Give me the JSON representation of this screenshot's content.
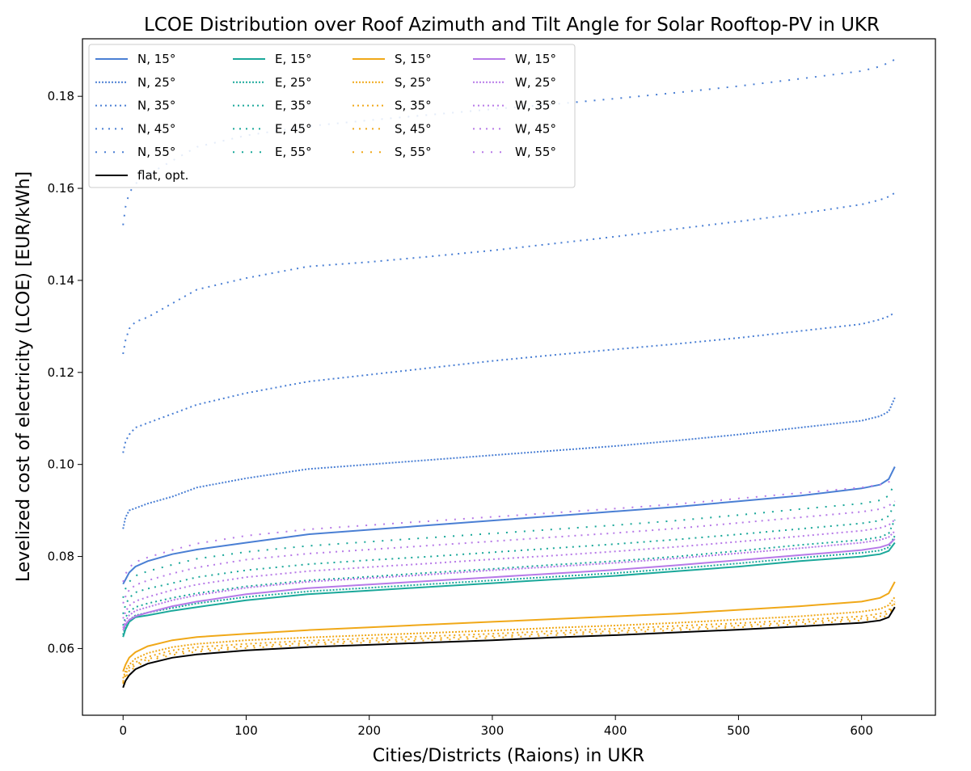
{
  "chart_data": {
    "type": "line",
    "title": "LCOE Distribution over Roof Azimuth and Tilt Angle for Solar Rooftop-PV in UKR",
    "xlabel": "Cities/Districts (Raions) in UKR",
    "ylabel": "Levelized cost of electricity (LCOE) [EUR/kWh]",
    "xlim": [
      -33,
      660
    ],
    "ylim": [
      0.0455,
      0.1925
    ],
    "xticks": [
      0,
      100,
      200,
      300,
      400,
      500,
      600
    ],
    "yticks": [
      0.06,
      0.08,
      0.1,
      0.12,
      0.14,
      0.16,
      0.18
    ],
    "ytick_labels": [
      "0.06",
      "0.08",
      "0.10",
      "0.12",
      "0.14",
      "0.16",
      "0.18"
    ],
    "grid": false,
    "legend_position": "top-left",
    "legend_columns": 4,
    "x_profile": [
      0,
      2,
      5,
      10,
      20,
      40,
      60,
      100,
      150,
      200,
      250,
      300,
      350,
      400,
      450,
      500,
      550,
      600,
      615,
      622,
      627
    ],
    "series": [
      {
        "name": "N, 15°",
        "color": "#4a7fd4",
        "dash": "solid",
        "values": [
          0.074,
          0.075,
          0.0765,
          0.0778,
          0.079,
          0.0805,
          0.0815,
          0.083,
          0.0848,
          0.0858,
          0.0868,
          0.0878,
          0.0888,
          0.0898,
          0.0908,
          0.092,
          0.0932,
          0.0948,
          0.0956,
          0.0968,
          0.0995
        ]
      },
      {
        "name": "N, 25°",
        "color": "#4a7fd4",
        "dash": "dot1",
        "values": [
          0.086,
          0.0885,
          0.09,
          0.0905,
          0.0915,
          0.093,
          0.095,
          0.097,
          0.099,
          0.1,
          0.101,
          0.102,
          0.103,
          0.104,
          0.1052,
          0.1065,
          0.108,
          0.1095,
          0.1105,
          0.1115,
          0.1145
        ]
      },
      {
        "name": "N, 35°",
        "color": "#4a7fd4",
        "dash": "dot2",
        "values": [
          0.1025,
          0.105,
          0.1065,
          0.108,
          0.109,
          0.111,
          0.113,
          0.1155,
          0.118,
          0.1195,
          0.121,
          0.1225,
          0.1238,
          0.125,
          0.1262,
          0.1275,
          0.129,
          0.1305,
          0.1315,
          0.1322,
          0.133
        ]
      },
      {
        "name": "N, 45°",
        "color": "#4a7fd4",
        "dash": "dot3",
        "values": [
          0.124,
          0.127,
          0.1295,
          0.131,
          0.132,
          0.135,
          0.138,
          0.1405,
          0.143,
          0.144,
          0.1452,
          0.1465,
          0.148,
          0.1495,
          0.1512,
          0.1528,
          0.1545,
          0.1565,
          0.1575,
          0.1582,
          0.159
        ]
      },
      {
        "name": "N, 55°",
        "color": "#4a7fd4",
        "dash": "dot4",
        "values": [
          0.152,
          0.156,
          0.159,
          0.161,
          0.163,
          0.166,
          0.169,
          0.1715,
          0.1735,
          0.1748,
          0.176,
          0.1772,
          0.1783,
          0.1795,
          0.1808,
          0.1822,
          0.1838,
          0.1855,
          0.1865,
          0.1873,
          0.188
        ]
      },
      {
        "name": "E, 15°",
        "color": "#1aa89a",
        "dash": "solid",
        "values": [
          0.0625,
          0.0642,
          0.0658,
          0.0668,
          0.0672,
          0.0682,
          0.069,
          0.0705,
          0.0718,
          0.0726,
          0.0734,
          0.0742,
          0.075,
          0.0758,
          0.0768,
          0.0778,
          0.079,
          0.08,
          0.0805,
          0.0812,
          0.083
        ]
      },
      {
        "name": "E, 25°",
        "color": "#1aa89a",
        "dash": "dot1",
        "values": [
          0.063,
          0.065,
          0.0662,
          0.0672,
          0.0678,
          0.0688,
          0.0698,
          0.0712,
          0.0724,
          0.0732,
          0.074,
          0.0748,
          0.0756,
          0.0764,
          0.0774,
          0.0785,
          0.0797,
          0.0808,
          0.0813,
          0.082,
          0.0845
        ]
      },
      {
        "name": "E, 35°",
        "color": "#1aa89a",
        "dash": "dot2",
        "values": [
          0.065,
          0.0668,
          0.068,
          0.069,
          0.0698,
          0.071,
          0.072,
          0.0735,
          0.0748,
          0.0756,
          0.0765,
          0.0773,
          0.0782,
          0.079,
          0.08,
          0.0812,
          0.0825,
          0.0836,
          0.0842,
          0.085,
          0.088
        ]
      },
      {
        "name": "E, 45°",
        "color": "#1aa89a",
        "dash": "dot3",
        "values": [
          0.0675,
          0.0695,
          0.071,
          0.0722,
          0.073,
          0.0742,
          0.0755,
          0.077,
          0.0783,
          0.0792,
          0.08,
          0.0809,
          0.0818,
          0.0827,
          0.0837,
          0.0848,
          0.086,
          0.0872,
          0.0878,
          0.0888,
          0.0915
        ]
      },
      {
        "name": "E, 55°",
        "color": "#1aa89a",
        "dash": "dot4",
        "values": [
          0.071,
          0.073,
          0.0745,
          0.0758,
          0.0768,
          0.0782,
          0.0795,
          0.081,
          0.0823,
          0.0832,
          0.0841,
          0.085,
          0.0859,
          0.0868,
          0.0878,
          0.089,
          0.0903,
          0.0915,
          0.0922,
          0.0932,
          0.096
        ]
      },
      {
        "name": "S, 15°",
        "color": "#f0a818",
        "dash": "solid",
        "values": [
          0.055,
          0.0565,
          0.058,
          0.0592,
          0.0605,
          0.0618,
          0.0625,
          0.0632,
          0.064,
          0.0646,
          0.0652,
          0.0658,
          0.0664,
          0.067,
          0.0676,
          0.0684,
          0.0692,
          0.0702,
          0.071,
          0.072,
          0.0745
        ]
      },
      {
        "name": "S, 25°",
        "color": "#f0a818",
        "dash": "dot1",
        "values": [
          0.0535,
          0.0552,
          0.0565,
          0.0578,
          0.059,
          0.0603,
          0.061,
          0.0618,
          0.0624,
          0.0629,
          0.0634,
          0.0639,
          0.0645,
          0.065,
          0.0656,
          0.0663,
          0.067,
          0.068,
          0.0686,
          0.0694,
          0.0712
        ]
      },
      {
        "name": "S, 35°",
        "color": "#f0a818",
        "dash": "dot2",
        "values": [
          0.0528,
          0.0545,
          0.0558,
          0.057,
          0.0582,
          0.0596,
          0.0603,
          0.061,
          0.0617,
          0.0622,
          0.0627,
          0.0632,
          0.0638,
          0.0643,
          0.0649,
          0.0655,
          0.0662,
          0.067,
          0.0676,
          0.0683,
          0.0702
        ]
      },
      {
        "name": "S, 45°",
        "color": "#f0a818",
        "dash": "dot3",
        "values": [
          0.0525,
          0.054,
          0.0552,
          0.0565,
          0.0577,
          0.059,
          0.0597,
          0.0605,
          0.0612,
          0.0617,
          0.0622,
          0.0627,
          0.0633,
          0.0638,
          0.0644,
          0.065,
          0.0657,
          0.0665,
          0.067,
          0.0677,
          0.0698
        ]
      },
      {
        "name": "S, 55°",
        "color": "#f0a818",
        "dash": "dot4",
        "values": [
          0.0523,
          0.0537,
          0.0549,
          0.0561,
          0.0573,
          0.0586,
          0.0593,
          0.0601,
          0.0608,
          0.0613,
          0.0618,
          0.0623,
          0.0629,
          0.0634,
          0.064,
          0.0646,
          0.0653,
          0.0661,
          0.0666,
          0.0673,
          0.0695
        ]
      },
      {
        "name": "W, 15°",
        "color": "#b77ae8",
        "dash": "solid",
        "values": [
          0.064,
          0.0652,
          0.0662,
          0.067,
          0.0678,
          0.0692,
          0.0702,
          0.0718,
          0.0731,
          0.0739,
          0.0747,
          0.0755,
          0.0763,
          0.0771,
          0.0781,
          0.0792,
          0.0803,
          0.0814,
          0.082,
          0.0826,
          0.0838
        ]
      },
      {
        "name": "W, 25°",
        "color": "#b77ae8",
        "dash": "dot1",
        "values": [
          0.0645,
          0.066,
          0.0672,
          0.0682,
          0.069,
          0.0705,
          0.0716,
          0.0732,
          0.0745,
          0.0753,
          0.0761,
          0.077,
          0.0778,
          0.0786,
          0.0796,
          0.0807,
          0.0818,
          0.083,
          0.0836,
          0.0842,
          0.0855
        ]
      },
      {
        "name": "W, 35°",
        "color": "#b77ae8",
        "dash": "dot2",
        "values": [
          0.0665,
          0.068,
          0.0693,
          0.0703,
          0.0712,
          0.0727,
          0.0739,
          0.0755,
          0.0768,
          0.0777,
          0.0785,
          0.0794,
          0.0802,
          0.0811,
          0.0821,
          0.0832,
          0.0844,
          0.0856,
          0.0862,
          0.0868,
          0.088
        ]
      },
      {
        "name": "W, 45°",
        "color": "#b77ae8",
        "dash": "dot3",
        "values": [
          0.0698,
          0.0713,
          0.0727,
          0.0738,
          0.0748,
          0.0763,
          0.0776,
          0.0793,
          0.0806,
          0.0815,
          0.0824,
          0.0833,
          0.0842,
          0.0851,
          0.0861,
          0.0873,
          0.0885,
          0.0897,
          0.0903,
          0.091,
          0.092
        ]
      },
      {
        "name": "W, 55°",
        "color": "#b77ae8",
        "dash": "dot4",
        "values": [
          0.0745,
          0.0762,
          0.0776,
          0.0788,
          0.0798,
          0.0814,
          0.0828,
          0.0845,
          0.0859,
          0.0868,
          0.0877,
          0.0886,
          0.0895,
          0.0904,
          0.0914,
          0.0926,
          0.0938,
          0.095,
          0.0956,
          0.0962,
          0.0962
        ]
      },
      {
        "name": "flat, opt.",
        "color": "#000000",
        "dash": "solid",
        "values": [
          0.0515,
          0.053,
          0.0542,
          0.0555,
          0.0567,
          0.058,
          0.0587,
          0.0596,
          0.0603,
          0.0608,
          0.0613,
          0.0618,
          0.0624,
          0.0629,
          0.0635,
          0.0641,
          0.0648,
          0.0656,
          0.0661,
          0.0668,
          0.069
        ]
      }
    ]
  }
}
